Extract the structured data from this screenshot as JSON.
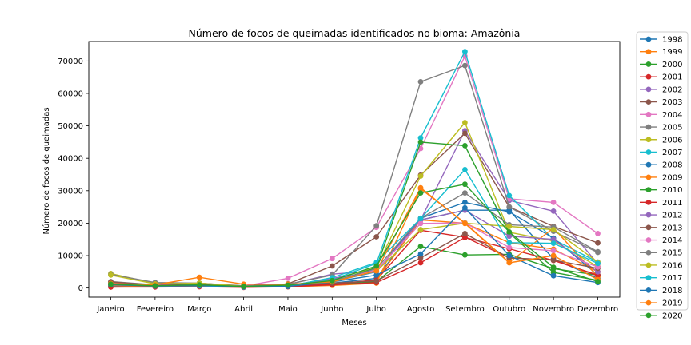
{
  "chart_data": {
    "type": "line",
    "title": "Número de focos de queimadas identificados no bioma: Amazônia",
    "xlabel": "Meses",
    "ylabel": "Número de focos de queimadas",
    "categories": [
      "Janeiro",
      "Fevereiro",
      "Março",
      "Abril",
      "Maio",
      "Junho",
      "Julho",
      "Agosto",
      "Setembro",
      "Outubro",
      "Novembro",
      "Dezembro"
    ],
    "ylim": [
      -2800,
      76000
    ],
    "yticks": [
      0,
      10000,
      20000,
      30000,
      40000,
      50000,
      60000,
      70000
    ],
    "grid": false,
    "legend_position": "outside-right",
    "series": [
      {
        "name": "1998",
        "color": "#1f77b4",
        "values": [
          1300,
          700,
          800,
          300,
          500,
          1500,
          3000,
          21000,
          24000,
          24000,
          9000,
          3000
        ]
      },
      {
        "name": "1999",
        "color": "#ff7f0e",
        "values": [
          900,
          600,
          700,
          400,
          600,
          1000,
          2500,
          21000,
          20000,
          14000,
          12000,
          5000
        ]
      },
      {
        "name": "2000",
        "color": "#2ca02c",
        "values": [
          700,
          500,
          600,
          300,
          400,
          1000,
          2000,
          12800,
          10200,
          10400,
          6000,
          4000
        ]
      },
      {
        "name": "2001",
        "color": "#d62728",
        "values": [
          300,
          400,
          600,
          300,
          500,
          1200,
          2500,
          17800,
          15700,
          9300,
          8700,
          3800
        ]
      },
      {
        "name": "2002",
        "color": "#9467bd",
        "values": [
          1200,
          800,
          1000,
          600,
          1100,
          4300,
          5300,
          21000,
          48500,
          27000,
          23700,
          7500
        ]
      },
      {
        "name": "2003",
        "color": "#8c564b",
        "values": [
          1700,
          1000,
          1300,
          700,
          1300,
          6800,
          15800,
          34800,
          47700,
          25000,
          19000,
          13900
        ]
      },
      {
        "name": "2004",
        "color": "#e377c2",
        "values": [
          800,
          600,
          900,
          600,
          3000,
          9100,
          18700,
          43000,
          71500,
          27500,
          26400,
          16800
        ]
      },
      {
        "name": "2005",
        "color": "#7f7f7f",
        "values": [
          2000,
          1000,
          1500,
          500,
          1200,
          4000,
          19200,
          63600,
          68600,
          25000,
          17500,
          11000
        ]
      },
      {
        "name": "2006",
        "color": "#bcbd22",
        "values": [
          4500,
          1400,
          1500,
          500,
          800,
          2700,
          6300,
          34500,
          51000,
          17200,
          14500,
          6600
        ]
      },
      {
        "name": "2007",
        "color": "#17becf",
        "values": [
          1200,
          600,
          1000,
          300,
          600,
          2600,
          7600,
          46300,
          72900,
          28500,
          15000,
          8000
        ]
      },
      {
        "name": "2008",
        "color": "#1f77b4",
        "values": [
          600,
          500,
          700,
          300,
          500,
          2000,
          5000,
          21500,
          26400,
          23500,
          15400,
          4000
        ]
      },
      {
        "name": "2009",
        "color": "#ff7f0e",
        "values": [
          800,
          400,
          500,
          300,
          400,
          800,
          1500,
          30600,
          20100,
          7900,
          18500,
          3500
        ]
      },
      {
        "name": "2010",
        "color": "#2ca02c",
        "values": [
          1300,
          800,
          900,
          400,
          700,
          1800,
          6300,
          45000,
          43900,
          17000,
          4800,
          2400
        ]
      },
      {
        "name": "2011",
        "color": "#d62728",
        "values": [
          300,
          300,
          400,
          200,
          400,
          1000,
          1700,
          7800,
          15600,
          12100,
          8500,
          4000
        ]
      },
      {
        "name": "2012",
        "color": "#9467bd",
        "values": [
          1500,
          800,
          700,
          300,
          700,
          3000,
          5000,
          21000,
          24000,
          16000,
          15000,
          5000
        ]
      },
      {
        "name": "2013",
        "color": "#8c564b",
        "values": [
          1900,
          900,
          1100,
          500,
          900,
          1500,
          2200,
          9300,
          16800,
          9300,
          8600,
          6100
        ]
      },
      {
        "name": "2014",
        "color": "#e377c2",
        "values": [
          1100,
          800,
          900,
          500,
          900,
          2300,
          5500,
          19900,
          20100,
          12500,
          11500,
          6500
        ]
      },
      {
        "name": "2015",
        "color": "#7f7f7f",
        "values": [
          4200,
          1700,
          1500,
          700,
          900,
          2000,
          6000,
          21500,
          29300,
          19500,
          18800,
          11200
        ]
      },
      {
        "name": "2016",
        "color": "#bcbd22",
        "values": [
          4000,
          1300,
          1500,
          500,
          700,
          2000,
          5200,
          18000,
          20000,
          19000,
          18000,
          8000
        ]
      },
      {
        "name": "2017",
        "color": "#17becf",
        "values": [
          1300,
          600,
          700,
          300,
          600,
          3200,
          7900,
          21400,
          36500,
          14000,
          13800,
          7600
        ]
      },
      {
        "name": "2018",
        "color": "#1f77b4",
        "values": [
          1000,
          600,
          800,
          400,
          500,
          1900,
          4000,
          10500,
          24700,
          10000,
          3800,
          1700
        ]
      },
      {
        "name": "2019",
        "color": "#ff7f0e",
        "values": [
          1400,
          1000,
          3300,
          1200,
          1200,
          1900,
          5300,
          30900,
          19900,
          7800,
          10000,
          2600
        ]
      },
      {
        "name": "2020",
        "color": "#2ca02c",
        "values": [
          1200,
          700,
          1000,
          500,
          900,
          2300,
          6800,
          29300,
          32000,
          17300,
          6400,
          2000
        ]
      }
    ]
  }
}
